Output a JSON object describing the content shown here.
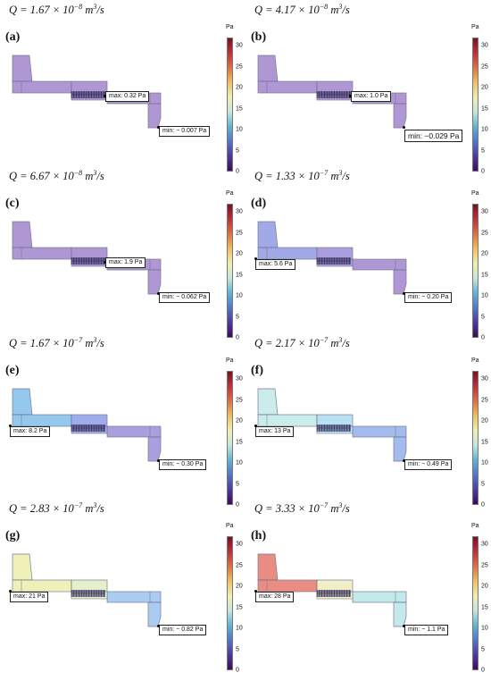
{
  "colorbar": {
    "unit": "Pa",
    "ticks": [
      "0",
      "5",
      "10",
      "15",
      "20",
      "25",
      "30"
    ],
    "stops": [
      "#3d0a5e",
      "#4e3aa0",
      "#5277c8",
      "#5fb4d4",
      "#c8e6dc",
      "#eef0b0",
      "#f0c060",
      "#e07040",
      "#c0303a",
      "#7a1020"
    ]
  },
  "panels": [
    {
      "label": "(a)",
      "flow": "1.67 × 10",
      "exp": "−8",
      "unit": " m",
      "uexp": "3",
      "tail": "/s",
      "max": "max: 0.32 Pa",
      "min": "min: − 0.007 Pa",
      "colors": {
        "res": "#a88fd0",
        "chan": "#a88fd0",
        "out": "#a88fd0"
      },
      "maxAtLeft": false,
      "minBig": false
    },
    {
      "label": "(b)",
      "flow": "4.17 × 10",
      "exp": "−8",
      "unit": " m",
      "uexp": "3",
      "tail": "/s",
      "max": "max: 1.0 Pa",
      "min": "min: −0.029 Pa",
      "colors": {
        "res": "#a88fd0",
        "chan": "#a88fd0",
        "out": "#a88fd0"
      },
      "maxAtLeft": false,
      "minBig": true
    },
    {
      "label": "(c)",
      "flow": "6.67 × 10",
      "exp": "−8",
      "unit": " m",
      "uexp": "3",
      "tail": "/s",
      "max": "max: 1.9 Pa",
      "min": "min: − 0.062 Pa",
      "colors": {
        "res": "#a88fd0",
        "chan": "#a88fd0",
        "out": "#a88fd0"
      },
      "maxAtLeft": false,
      "minBig": false
    },
    {
      "label": "(d)",
      "flow": "1.33 × 10",
      "exp": "−7",
      "unit": " m",
      "uexp": "3",
      "tail": "/s",
      "max": "max: 5.6 Pa",
      "min": "min: − 0.20 Pa",
      "colors": {
        "res": "#9aa2e6",
        "chan": "#a496dc",
        "out": "#a88fd0"
      },
      "maxAtLeft": true,
      "minBig": false
    },
    {
      "label": "(e)",
      "flow": "1.67 × 10",
      "exp": "−7",
      "unit": " m",
      "uexp": "3",
      "tail": "/s",
      "max": "max: 8.2 Pa",
      "min": "min: − 0.30 Pa",
      "colors": {
        "res": "#8cc4ec",
        "chan": "#98a6e8",
        "out": "#a296dc"
      },
      "maxAtLeft": true,
      "minBig": false
    },
    {
      "label": "(f)",
      "flow": "2.17 × 10",
      "exp": "−7",
      "unit": " m",
      "uexp": "3",
      "tail": "/s",
      "max": "max: 13 Pa",
      "min": "min: − 0.49 Pa",
      "colors": {
        "res": "#c6ecea",
        "chan": "#b4def0",
        "out": "#9cb6ec"
      },
      "maxAtLeft": true,
      "minBig": false
    },
    {
      "label": "(g)",
      "flow": "2.83 × 10",
      "exp": "−7",
      "unit": " m",
      "uexp": "3",
      "tail": "/s",
      "max": "max: 21 Pa",
      "min": "min: − 0.82 Pa",
      "colors": {
        "res": "#eef0b4",
        "chan": "#e2efc8",
        "out": "#a4c8f0"
      },
      "maxAtLeft": true,
      "minBig": false
    },
    {
      "label": "(h)",
      "flow": "3.33 × 10",
      "exp": "−7",
      "unit": " m",
      "uexp": "3",
      "tail": "/s",
      "max": "max: 28 Pa",
      "min": "min: − 1.1 Pa",
      "colors": {
        "res": "#e88478",
        "chan": "#f0eec4",
        "out": "#bee8ea"
      },
      "maxAtLeft": true,
      "minBig": false
    }
  ]
}
